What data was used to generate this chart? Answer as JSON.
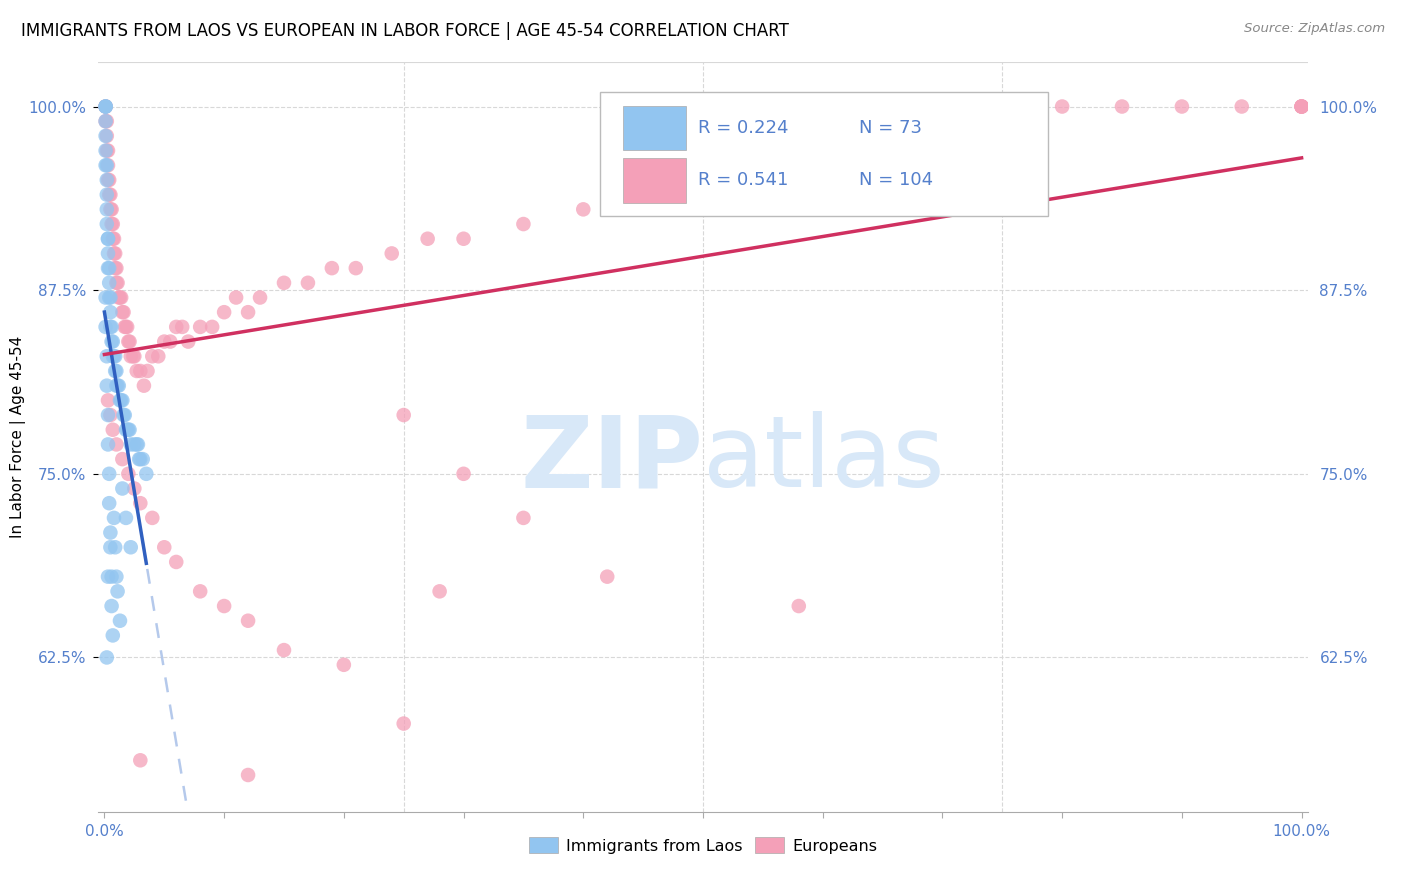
{
  "title": "IMMIGRANTS FROM LAOS VS EUROPEAN IN LABOR FORCE | AGE 45-54 CORRELATION CHART",
  "source": "Source: ZipAtlas.com",
  "ylabel": "In Labor Force | Age 45-54",
  "legend_laos_R": "0.224",
  "legend_laos_N": "73",
  "legend_euro_R": "0.541",
  "legend_euro_N": "104",
  "color_laos": "#92C5F0",
  "color_euro": "#F4A0B8",
  "color_laos_line": "#3060C0",
  "color_euro_line": "#D03060",
  "color_dash": "#A8C0E8",
  "watermark_color": "#D8E8F8",
  "grid_color": "#D8D8D8",
  "tick_color": "#5580CC",
  "ylim_min": 0.52,
  "ylim_max": 1.03,
  "xlim_min": -0.005,
  "xlim_max": 1.005,
  "laos_x": [
    0.001,
    0.001,
    0.001,
    0.001,
    0.001,
    0.001,
    0.001,
    0.002,
    0.002,
    0.002,
    0.002,
    0.002,
    0.003,
    0.003,
    0.003,
    0.003,
    0.004,
    0.004,
    0.004,
    0.005,
    0.005,
    0.005,
    0.006,
    0.006,
    0.007,
    0.007,
    0.008,
    0.009,
    0.009,
    0.01,
    0.01,
    0.011,
    0.012,
    0.013,
    0.014,
    0.015,
    0.016,
    0.017,
    0.018,
    0.019,
    0.02,
    0.021,
    0.022,
    0.025,
    0.027,
    0.028,
    0.029,
    0.03,
    0.032,
    0.035,
    0.001,
    0.001,
    0.002,
    0.002,
    0.003,
    0.003,
    0.004,
    0.004,
    0.005,
    0.005,
    0.006,
    0.006,
    0.007,
    0.008,
    0.009,
    0.01,
    0.011,
    0.013,
    0.015,
    0.018,
    0.022,
    0.003,
    0.002
  ],
  "laos_y": [
    1.0,
    1.0,
    1.0,
    0.99,
    0.98,
    0.97,
    0.96,
    0.96,
    0.95,
    0.94,
    0.93,
    0.92,
    0.91,
    0.91,
    0.9,
    0.89,
    0.89,
    0.88,
    0.87,
    0.87,
    0.86,
    0.85,
    0.85,
    0.84,
    0.84,
    0.83,
    0.83,
    0.83,
    0.82,
    0.82,
    0.81,
    0.81,
    0.81,
    0.8,
    0.8,
    0.8,
    0.79,
    0.79,
    0.78,
    0.78,
    0.78,
    0.78,
    0.77,
    0.77,
    0.77,
    0.77,
    0.76,
    0.76,
    0.76,
    0.75,
    0.87,
    0.85,
    0.83,
    0.81,
    0.79,
    0.77,
    0.75,
    0.73,
    0.71,
    0.7,
    0.68,
    0.66,
    0.64,
    0.72,
    0.7,
    0.68,
    0.67,
    0.65,
    0.74,
    0.72,
    0.7,
    0.68,
    0.625
  ],
  "euro_x": [
    0.001,
    0.001,
    0.001,
    0.002,
    0.002,
    0.002,
    0.003,
    0.003,
    0.003,
    0.004,
    0.004,
    0.005,
    0.005,
    0.006,
    0.006,
    0.007,
    0.007,
    0.008,
    0.008,
    0.009,
    0.009,
    0.01,
    0.01,
    0.011,
    0.012,
    0.013,
    0.014,
    0.015,
    0.016,
    0.017,
    0.018,
    0.019,
    0.02,
    0.021,
    0.022,
    0.024,
    0.025,
    0.027,
    0.03,
    0.033,
    0.036,
    0.04,
    0.045,
    0.05,
    0.055,
    0.06,
    0.065,
    0.07,
    0.08,
    0.09,
    0.1,
    0.11,
    0.12,
    0.13,
    0.15,
    0.17,
    0.19,
    0.21,
    0.24,
    0.27,
    0.3,
    0.35,
    0.4,
    0.45,
    0.5,
    0.55,
    0.6,
    0.65,
    0.7,
    0.75,
    0.8,
    0.85,
    0.9,
    0.95,
    1.0,
    1.0,
    1.0,
    1.0,
    1.0,
    0.003,
    0.005,
    0.007,
    0.01,
    0.015,
    0.02,
    0.025,
    0.03,
    0.04,
    0.05,
    0.06,
    0.08,
    0.1,
    0.12,
    0.15,
    0.2,
    0.25,
    0.3,
    0.35,
    0.28,
    0.42,
    0.58,
    0.25,
    0.03,
    0.12
  ],
  "euro_y": [
    1.0,
    1.0,
    0.99,
    0.99,
    0.98,
    0.97,
    0.97,
    0.96,
    0.95,
    0.95,
    0.94,
    0.94,
    0.93,
    0.93,
    0.92,
    0.92,
    0.91,
    0.91,
    0.9,
    0.9,
    0.89,
    0.89,
    0.88,
    0.88,
    0.87,
    0.87,
    0.87,
    0.86,
    0.86,
    0.85,
    0.85,
    0.85,
    0.84,
    0.84,
    0.83,
    0.83,
    0.83,
    0.82,
    0.82,
    0.81,
    0.82,
    0.83,
    0.83,
    0.84,
    0.84,
    0.85,
    0.85,
    0.84,
    0.85,
    0.85,
    0.86,
    0.87,
    0.86,
    0.87,
    0.88,
    0.88,
    0.89,
    0.89,
    0.9,
    0.91,
    0.91,
    0.92,
    0.93,
    0.94,
    0.95,
    0.95,
    0.96,
    0.97,
    0.98,
    0.99,
    1.0,
    1.0,
    1.0,
    1.0,
    1.0,
    1.0,
    1.0,
    1.0,
    1.0,
    0.8,
    0.79,
    0.78,
    0.77,
    0.76,
    0.75,
    0.74,
    0.73,
    0.72,
    0.7,
    0.69,
    0.67,
    0.66,
    0.65,
    0.63,
    0.62,
    0.79,
    0.75,
    0.72,
    0.67,
    0.68,
    0.66,
    0.58,
    0.555,
    0.545
  ]
}
